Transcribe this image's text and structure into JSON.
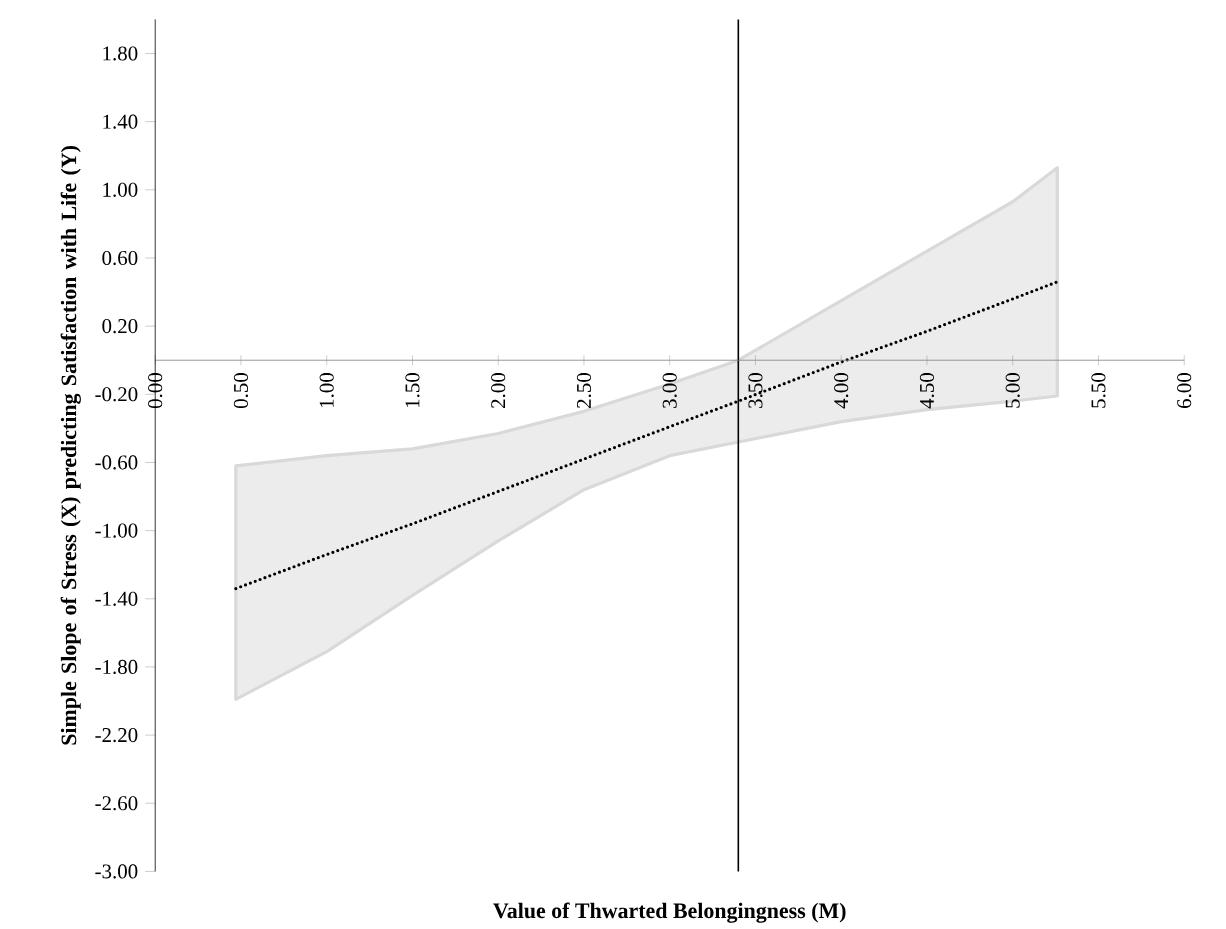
{
  "chart_data": {
    "type": "line",
    "xlabel": "Value of Thwarted Belongingness (M)",
    "ylabel": "Simple Slope of Stress (X) predicting Satisfaction with Life (Y)",
    "x": [
      0.47,
      1.0,
      1.5,
      2.0,
      2.5,
      3.0,
      3.4,
      4.0,
      4.5,
      5.0,
      5.26
    ],
    "series": [
      {
        "color": "#000000",
        "line_style": "dotted",
        "marker": "none",
        "values": [
          -1.34,
          -1.14,
          -0.96,
          -0.77,
          -0.58,
          -0.39,
          -0.24,
          -0.01,
          0.17,
          0.36,
          0.46
        ],
        "lower": [
          -1.99,
          -1.71,
          -1.38,
          -1.06,
          -0.76,
          -0.56,
          -0.48,
          -0.36,
          -0.29,
          -0.24,
          -0.21
        ],
        "upper": [
          -0.62,
          -0.56,
          -0.52,
          -0.43,
          -0.3,
          -0.14,
          0.0,
          0.35,
          0.64,
          0.93,
          1.13
        ]
      }
    ],
    "xlim": [
      0,
      6
    ],
    "ylim": [
      -3,
      2
    ],
    "xticks": [
      {
        "value": 0,
        "label": "0.00"
      },
      {
        "value": 0.5,
        "label": "0.50"
      },
      {
        "value": 1,
        "label": "1.00"
      },
      {
        "value": 1.5,
        "label": "1.50"
      },
      {
        "value": 2,
        "label": "2.00"
      },
      {
        "value": 2.5,
        "label": "2.50"
      },
      {
        "value": 3,
        "label": "3.00"
      },
      {
        "value": 3.5,
        "label": "3.50"
      },
      {
        "value": 4,
        "label": "4.00"
      },
      {
        "value": 4.5,
        "label": "4.50"
      },
      {
        "value": 5,
        "label": "5.00"
      },
      {
        "value": 5.5,
        "label": "5.50"
      },
      {
        "value": 6,
        "label": "6.00"
      }
    ],
    "yticks": [
      {
        "value": -3,
        "label": "-3.00"
      },
      {
        "value": -2.6,
        "label": "-2.60"
      },
      {
        "value": -2.2,
        "label": "-2.20"
      },
      {
        "value": -1.8,
        "label": "-1.80"
      },
      {
        "value": -1.4,
        "label": "-1.40"
      },
      {
        "value": -1,
        "label": "-1.00"
      },
      {
        "value": -0.6,
        "label": "-0.60"
      },
      {
        "value": -0.2,
        "label": "-0.20"
      },
      {
        "value": 0.2,
        "label": "0.20"
      },
      {
        "value": 0.6,
        "label": "0.60"
      },
      {
        "value": 1,
        "label": "1.00"
      },
      {
        "value": 1.4,
        "label": "1.40"
      },
      {
        "value": 1.8,
        "label": "1.80"
      }
    ],
    "ref_lines": [
      {
        "axis": "x",
        "value": 3.4,
        "color": "#000000"
      }
    ]
  }
}
